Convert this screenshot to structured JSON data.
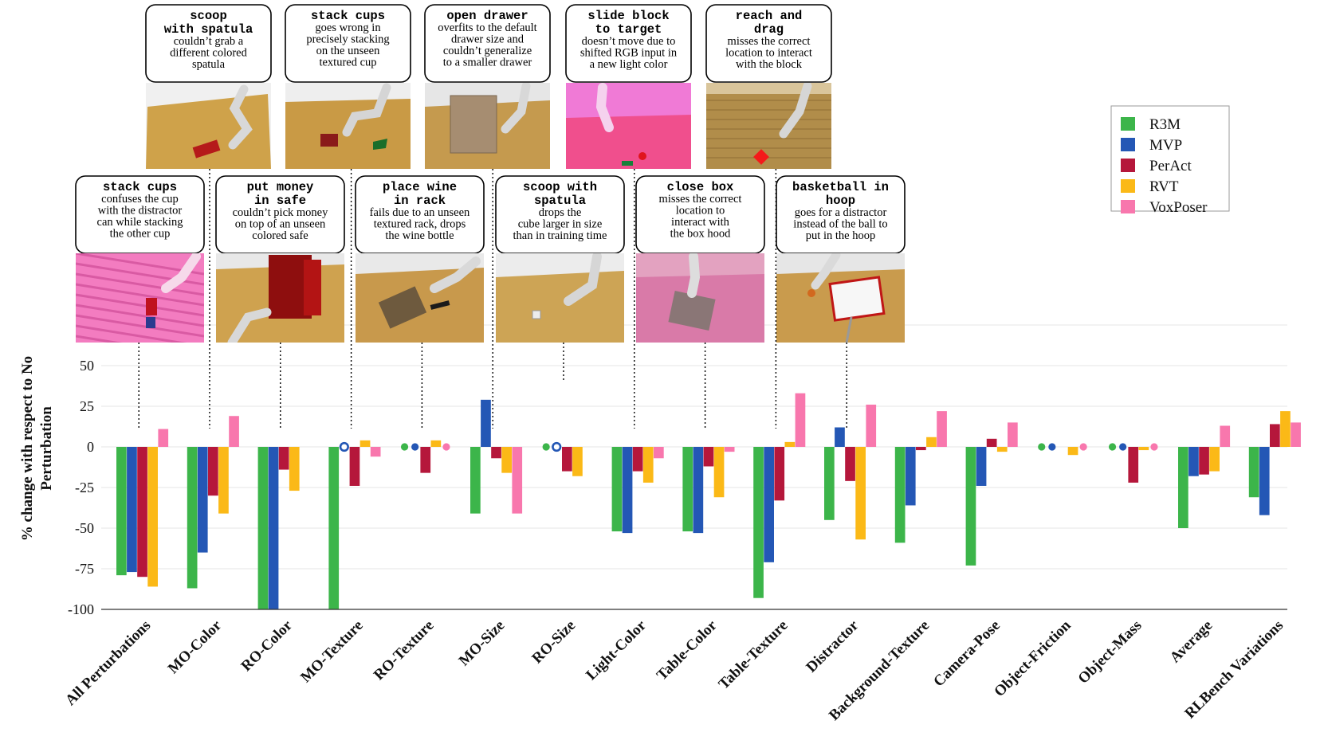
{
  "chart_data": {
    "type": "bar",
    "ylabel": "% change with respect to No Perturbation",
    "ylim": [
      -100,
      65
    ],
    "yticks": [
      50,
      25,
      0,
      -25,
      -50,
      -75,
      -100
    ],
    "categories": [
      "All Perturbations",
      "MO-Color",
      "RO-Color",
      "MO-Texture",
      "RO-Texture",
      "MO-Size",
      "RO-Size",
      "Light-Color",
      "Table-Color",
      "Table-Texture",
      "Distractor",
      "Background-Texture",
      "Camera-Pose",
      "Object-Friction",
      "Object-Mass",
      "Average",
      "RLBench Variations"
    ],
    "series": [
      {
        "name": "R3M",
        "color": "#3cb54a",
        "values": [
          -79,
          -87,
          -100,
          -100,
          null,
          -41,
          null,
          -52,
          -52,
          -93,
          -45,
          -59,
          -73,
          null,
          null,
          -50,
          -31
        ]
      },
      {
        "name": "MVP",
        "color": "#2457b5",
        "values": [
          -77,
          -65,
          -100,
          null,
          null,
          29,
          null,
          -53,
          -53,
          -71,
          12,
          -36,
          -24,
          null,
          null,
          -18,
          -42
        ]
      },
      {
        "name": "PerAct",
        "color": "#b5173b",
        "values": [
          -80,
          -30,
          -14,
          -24,
          -16,
          -7,
          -15,
          -15,
          -12,
          -33,
          -21,
          -2,
          5,
          null,
          -22,
          -17,
          14
        ]
      },
      {
        "name": "RVT",
        "color": "#fbb917",
        "values": [
          -86,
          -41,
          -27,
          4,
          4,
          -16,
          -18,
          -22,
          -31,
          3,
          -57,
          6,
          -3,
          -5,
          -2,
          -15,
          22
        ]
      },
      {
        "name": "VoxPoser",
        "color": "#f877ad",
        "values": [
          11,
          19,
          null,
          -6,
          null,
          -41,
          null,
          -7,
          -3,
          33,
          26,
          22,
          15,
          null,
          null,
          13,
          15
        ]
      }
    ],
    "markers": [
      {
        "category": "MO-Texture",
        "series": "MVP",
        "style": "ring"
      },
      {
        "category": "RO-Texture",
        "series": "R3M",
        "style": "dot"
      },
      {
        "category": "RO-Texture",
        "series": "MVP",
        "style": "dot"
      },
      {
        "category": "RO-Texture",
        "series": "VoxPoser",
        "style": "dot"
      },
      {
        "category": "RO-Size",
        "series": "R3M",
        "style": "dot"
      },
      {
        "category": "RO-Size",
        "series": "MVP",
        "style": "ring"
      },
      {
        "category": "Object-Friction",
        "series": "R3M",
        "style": "dot"
      },
      {
        "category": "Object-Friction",
        "series": "MVP",
        "style": "dot"
      },
      {
        "category": "Object-Friction",
        "series": "VoxPoser",
        "style": "dot"
      },
      {
        "category": "Object-Mass",
        "series": "R3M",
        "style": "dot"
      },
      {
        "category": "Object-Mass",
        "series": "MVP",
        "style": "dot"
      },
      {
        "category": "Object-Mass",
        "series": "VoxPoser",
        "style": "dot"
      }
    ],
    "legend": {
      "position": "top-right",
      "entries": [
        "R3M",
        "MVP",
        "PerAct",
        "RVT",
        "VoxPoser"
      ]
    },
    "callouts_top": [
      {
        "title": [
          "scoop",
          "with spatula"
        ],
        "body": [
          "couldn’t grab a",
          "different colored",
          "spatula"
        ],
        "image": "scene-scoop-red-spatula",
        "category": "MO-Color"
      },
      {
        "title": [
          "stack cups"
        ],
        "body": [
          "goes wrong in",
          "precisely stacking",
          "on the unseen",
          "textured cup"
        ],
        "image": "scene-stack-textured-cup",
        "category": "MO-Texture"
      },
      {
        "title": [
          "open drawer"
        ],
        "body": [
          "overfits to the default",
          "drawer size and",
          "couldn’t generalize",
          "to a smaller drawer"
        ],
        "image": "scene-open-drawer",
        "category": "MO-Size"
      },
      {
        "title": [
          "slide block",
          "to target"
        ],
        "body": [
          "doesn’t move due to",
          "shifted RGB input in",
          "a new light color"
        ],
        "image": "scene-pink-light",
        "category": "Light-Color"
      },
      {
        "title": [
          "reach and",
          "drag"
        ],
        "body": [
          "misses the correct",
          "location to interact",
          "with the block"
        ],
        "image": "scene-textured-table",
        "category": "Table-Texture"
      }
    ],
    "callouts_bottom": [
      {
        "title": [
          "stack cups"
        ],
        "body": [
          "confuses the cup",
          "with the distractor",
          "can while stacking",
          "the other cup"
        ],
        "image": "scene-pink-background",
        "category": "All Perturbations"
      },
      {
        "title": [
          "put money",
          "in safe"
        ],
        "body": [
          "couldn’t pick money",
          "on top of an unseen",
          "colored safe"
        ],
        "image": "scene-red-safe",
        "category": "RO-Color"
      },
      {
        "title": [
          "place wine",
          "in rack"
        ],
        "body": [
          "fails due to an unseen",
          "textured rack, drops",
          "the wine bottle"
        ],
        "image": "scene-wine-rack",
        "category": "RO-Texture"
      },
      {
        "title": [
          "scoop with",
          "spatula"
        ],
        "body": [
          "drops the",
          "cube larger in size",
          "than in training time"
        ],
        "image": "scene-scoop-cube",
        "category": "RO-Size"
      },
      {
        "title": [
          "close box"
        ],
        "body": [
          "misses the correct",
          "location to",
          "interact with",
          "the box hood"
        ],
        "image": "scene-close-box",
        "category": "Table-Color"
      },
      {
        "title": [
          "basketball in",
          "hoop"
        ],
        "body": [
          "goes for a distractor",
          "instead of the ball to",
          "put in the hoop"
        ],
        "image": "scene-basketball-hoop",
        "category": "Distractor"
      }
    ]
  }
}
